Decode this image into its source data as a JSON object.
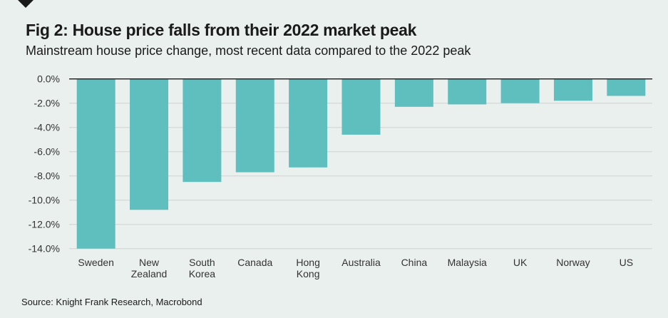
{
  "title": "Fig 2: House price falls from their 2022 market peak",
  "subtitle": "Mainstream house price change, most recent data compared to the 2022 peak",
  "source": "Source: Knight Frank Research, Macrobond",
  "chart_data": {
    "type": "bar",
    "title": "Fig 2: House price falls from their 2022 market peak",
    "subtitle": "Mainstream house price change, most recent data compared to the 2022 peak",
    "categories": [
      "Sweden",
      "New Zealand",
      "South Korea",
      "Canada",
      "Hong Kong",
      "Australia",
      "China",
      "Malaysia",
      "UK",
      "Norway",
      "US"
    ],
    "category_lines": [
      [
        "Sweden"
      ],
      [
        "New",
        "Zealand"
      ],
      [
        "South",
        "Korea"
      ],
      [
        "Canada"
      ],
      [
        "Hong",
        "Kong"
      ],
      [
        "Australia"
      ],
      [
        "China"
      ],
      [
        "Malaysia"
      ],
      [
        "UK"
      ],
      [
        "Norway"
      ],
      [
        "US"
      ]
    ],
    "values": [
      -14.0,
      -10.8,
      -8.5,
      -7.7,
      -7.3,
      -4.6,
      -2.3,
      -2.1,
      -2.0,
      -1.8,
      -1.4
    ],
    "unit": "%",
    "ylim": [
      -14,
      0
    ],
    "yticks": [
      "0.0%",
      "-2.0%",
      "-4.0%",
      "-6.0%",
      "-8.0%",
      "-10.0%",
      "-12.0%",
      "-14.0%"
    ],
    "ytick_values": [
      0,
      -2,
      -4,
      -6,
      -8,
      -10,
      -12,
      -14
    ],
    "grid": true,
    "bar_color": "#5fbfbe",
    "background": "#eaf0ee"
  }
}
